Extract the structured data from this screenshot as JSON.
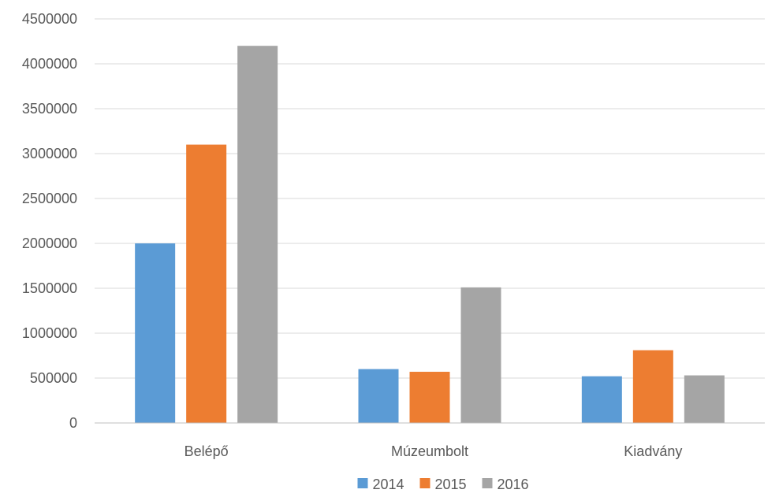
{
  "chart_data": {
    "type": "bar",
    "categories": [
      "Belépő",
      "Múzeumbolt",
      "Kiadvány"
    ],
    "series": [
      {
        "name": "2014",
        "color": "#5b9bd5",
        "values": [
          2000000,
          600000,
          520000
        ]
      },
      {
        "name": "2015",
        "color": "#ed7d31",
        "values": [
          3100000,
          570000,
          810000
        ]
      },
      {
        "name": "2016",
        "color": "#a5a5a5",
        "values": [
          4200000,
          1510000,
          530000
        ]
      }
    ],
    "ylim": [
      0,
      4500000
    ],
    "yticks": [
      0,
      500000,
      1000000,
      1500000,
      2000000,
      2500000,
      3000000,
      3500000,
      4000000,
      4500000
    ],
    "ytick_labels": [
      "0",
      "500000",
      "1000000",
      "1500000",
      "2000000",
      "2500000",
      "3000000",
      "3500000",
      "4000000",
      "4500000"
    ],
    "grid": true,
    "legend": "bottom",
    "title": "",
    "xlabel": "",
    "ylabel": ""
  }
}
